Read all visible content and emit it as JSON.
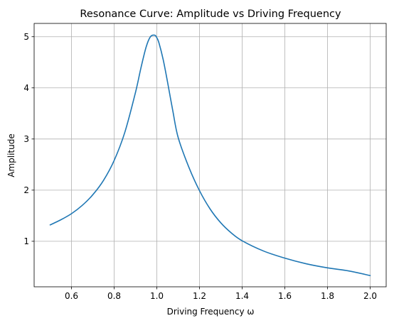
{
  "chart_data": {
    "type": "line",
    "title": "Resonance Curve: Amplitude vs Driving Frequency",
    "xlabel": "Driving Frequency ω",
    "ylabel": "Amplitude",
    "xlim": [
      0.425,
      2.075
    ],
    "ylim": [
      0.11,
      5.26
    ],
    "xticks": [
      0.6,
      0.8,
      1.0,
      1.2,
      1.4,
      1.6,
      1.8,
      2.0
    ],
    "xtick_labels": [
      "0.6",
      "0.8",
      "1.0",
      "1.2",
      "1.4",
      "1.6",
      "1.8",
      "2.0"
    ],
    "yticks": [
      1,
      2,
      3,
      4,
      5
    ],
    "ytick_labels": [
      "1",
      "2",
      "3",
      "4",
      "5"
    ],
    "grid": true,
    "series": [
      {
        "color": "#1f77b4",
        "x": [
          0.5,
          0.55,
          0.6,
          0.65,
          0.7,
          0.75,
          0.8,
          0.85,
          0.9,
          0.925,
          0.95,
          0.97,
          0.99,
          1.0,
          1.01,
          1.03,
          1.05,
          1.075,
          1.1,
          1.15,
          1.2,
          1.25,
          1.3,
          1.35,
          1.4,
          1.5,
          1.6,
          1.7,
          1.8,
          1.9,
          2.0
        ],
        "y": [
          1.32,
          1.42,
          1.54,
          1.7,
          1.91,
          2.19,
          2.58,
          3.13,
          3.91,
          4.38,
          4.8,
          5.0,
          5.03,
          4.98,
          4.88,
          4.55,
          4.12,
          3.55,
          3.03,
          2.45,
          1.99,
          1.63,
          1.36,
          1.16,
          1.01,
          0.81,
          0.67,
          0.56,
          0.48,
          0.42,
          0.33
        ]
      }
    ]
  }
}
